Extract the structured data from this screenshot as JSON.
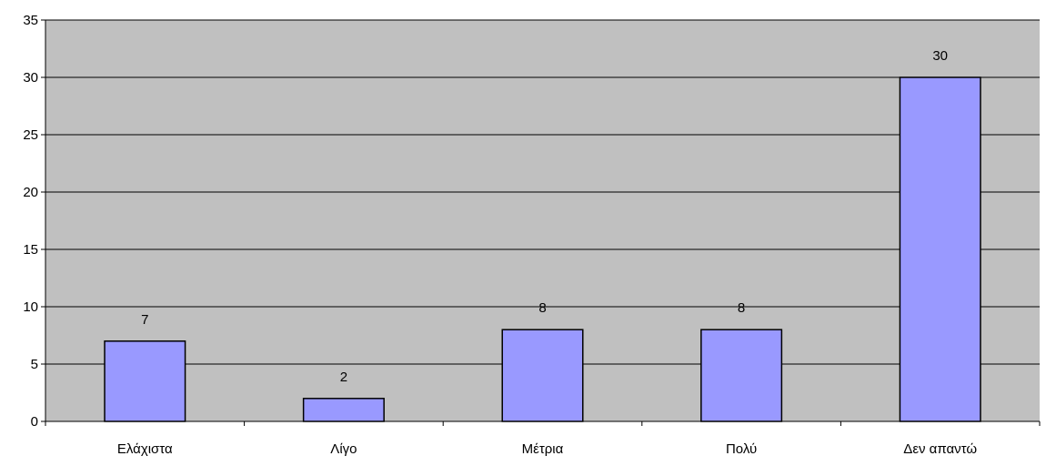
{
  "chart_data": {
    "type": "bar",
    "title": "",
    "xlabel": "",
    "ylabel": "",
    "categories": [
      "Ελάχιστα",
      "Λίγο",
      "Μέτρια",
      "Πολύ",
      "Δεν απαντώ"
    ],
    "values": [
      7,
      2,
      8,
      8,
      30
    ],
    "data_labels": [
      "7",
      "2",
      "8",
      "8",
      "30"
    ],
    "ylim": [
      0,
      35
    ],
    "yticks": [
      0,
      5,
      10,
      15,
      20,
      25,
      30,
      35
    ],
    "ytick_labels": [
      "0",
      "5",
      "10",
      "15",
      "20",
      "25",
      "30",
      "35"
    ],
    "grid": true,
    "legend": false,
    "colors": {
      "plot_background": "#c0c0c0",
      "bar_fill": "#9999ff",
      "bar_stroke": "#000000",
      "gridline": "#000000"
    }
  }
}
